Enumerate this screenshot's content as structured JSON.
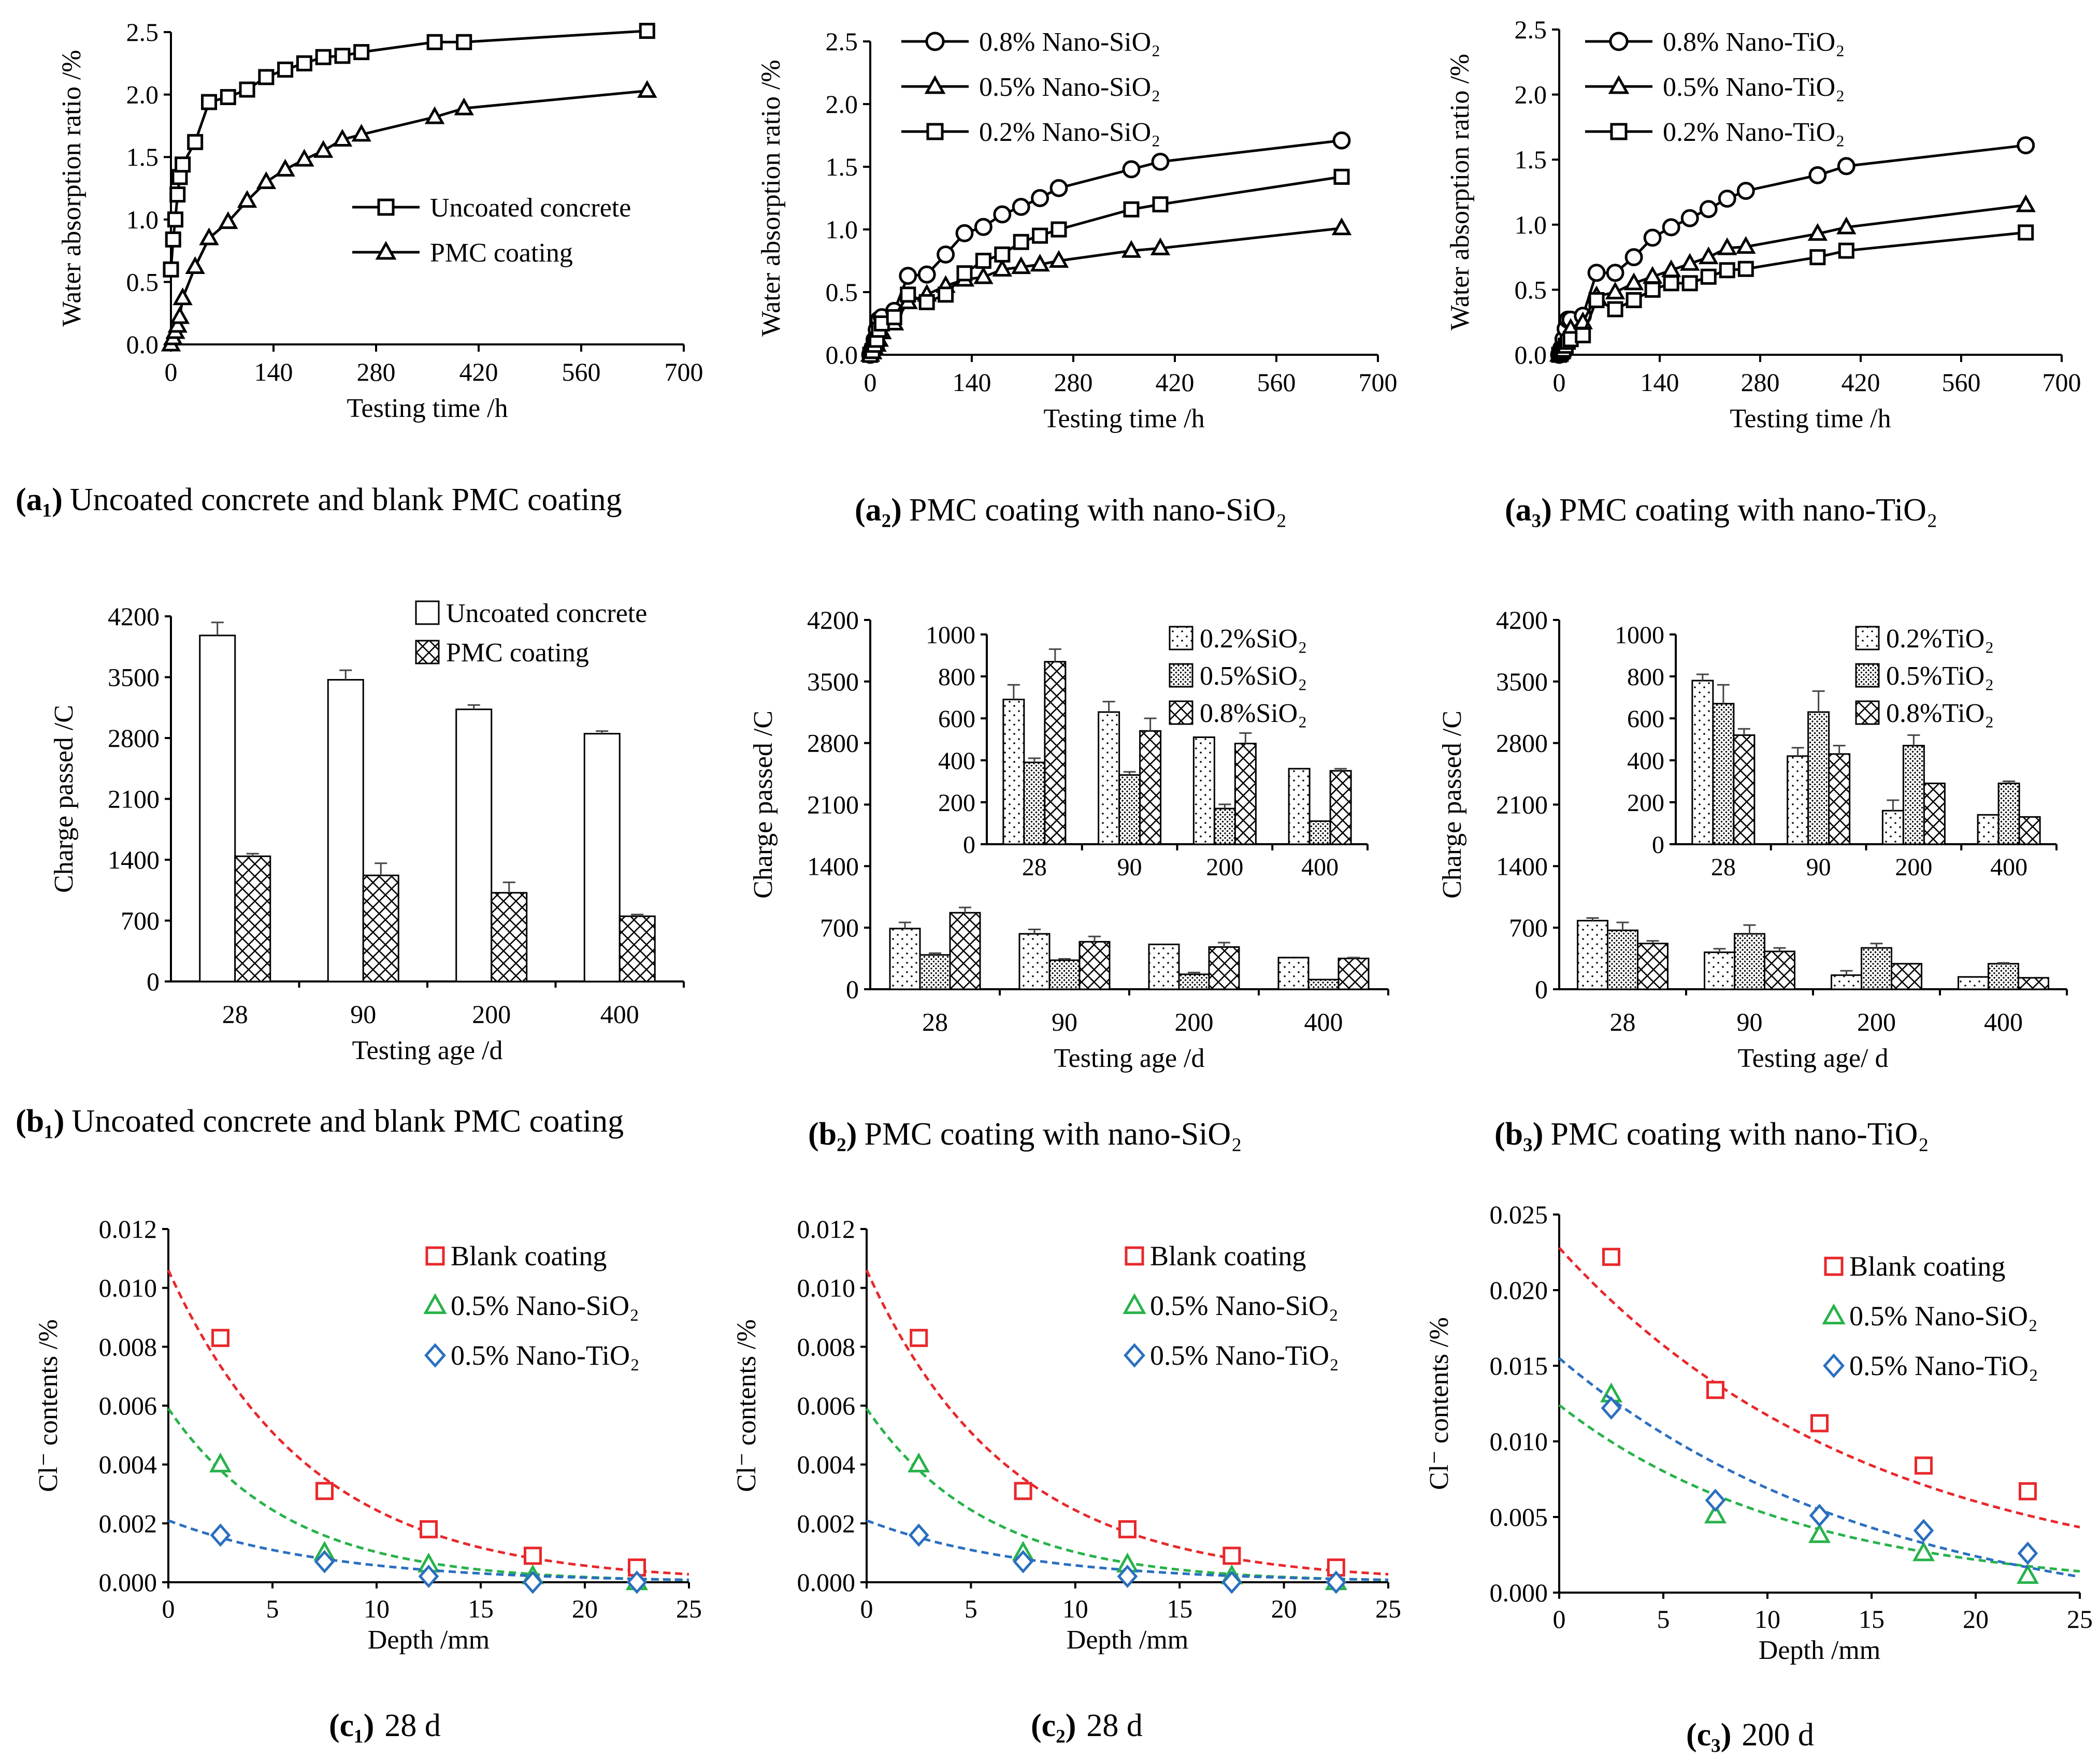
{
  "colors": {
    "axis": "#000000",
    "red": "#e8282b",
    "green": "#27b24a",
    "blue": "#2a6fc0",
    "white": "#ffffff"
  },
  "chart_data": [
    {
      "id": "a1",
      "type": "line",
      "caption_id": "(a₁)",
      "caption": "Uncoated concrete and blank PMC coating",
      "xlabel": "Testing time /h",
      "ylabel": "Water absorption ratio /%",
      "xlim": [
        0,
        700
      ],
      "ylim": [
        0,
        2.5
      ],
      "xticks": [
        "0",
        "140",
        "280",
        "420",
        "560",
        "700"
      ],
      "yticks": [
        "0.0",
        "0.5",
        "1.0",
        "1.5",
        "2.0",
        "2.5"
      ],
      "legend": [
        "Uncoated concrete",
        "PMC coating"
      ],
      "series": [
        {
          "name": "Uncoated concrete",
          "marker": "square",
          "x": [
            0,
            3,
            6,
            9,
            12,
            16,
            33,
            52,
            78,
            104,
            130,
            156,
            182,
            208,
            234,
            260,
            360,
            400,
            650
          ],
          "y": [
            0.6,
            0.84,
            1.0,
            1.2,
            1.34,
            1.44,
            1.62,
            1.94,
            1.98,
            2.04,
            2.14,
            2.2,
            2.25,
            2.3,
            2.31,
            2.34,
            2.42,
            2.42,
            2.51
          ]
        },
        {
          "name": "PMC coating",
          "marker": "triangle",
          "x": [
            0,
            3,
            6,
            9,
            12,
            16,
            33,
            52,
            78,
            104,
            130,
            156,
            182,
            208,
            234,
            260,
            360,
            400,
            650
          ],
          "y": [
            0.0,
            0.05,
            0.1,
            0.15,
            0.22,
            0.37,
            0.62,
            0.85,
            0.98,
            1.15,
            1.3,
            1.4,
            1.48,
            1.55,
            1.64,
            1.68,
            1.82,
            1.89,
            2.03
          ]
        }
      ]
    },
    {
      "id": "a2",
      "type": "line",
      "caption_id": "(a₂)",
      "caption": "PMC coating with nano-SiO₂",
      "xlabel": "Testing time /h",
      "ylabel": "Water absorption ratio /%",
      "xlim": [
        0,
        700
      ],
      "ylim": [
        0,
        2.5
      ],
      "xticks": [
        "0",
        "140",
        "280",
        "420",
        "560",
        "700"
      ],
      "yticks": [
        "0.0",
        "0.5",
        "1.0",
        "1.5",
        "2.0",
        "2.5"
      ],
      "legend": [
        "0.8% Nano-SiO₂",
        "0.5% Nano-SiO₂",
        "0.2% Nano-SiO₂"
      ],
      "series": [
        {
          "name": "0.8% Nano-SiO₂",
          "marker": "circle",
          "x": [
            0,
            3,
            6,
            9,
            12,
            16,
            33,
            52,
            78,
            104,
            130,
            156,
            182,
            208,
            234,
            260,
            360,
            400,
            650
          ],
          "y": [
            0.0,
            0.05,
            0.12,
            0.2,
            0.28,
            0.3,
            0.35,
            0.63,
            0.64,
            0.8,
            0.97,
            1.02,
            1.12,
            1.18,
            1.25,
            1.33,
            1.48,
            1.54,
            1.71
          ]
        },
        {
          "name": "0.5% Nano-SiO₂",
          "marker": "triangle",
          "x": [
            0,
            3,
            6,
            9,
            12,
            16,
            33,
            52,
            78,
            104,
            130,
            156,
            182,
            208,
            234,
            260,
            360,
            400,
            650
          ],
          "y": [
            0.0,
            0.02,
            0.05,
            0.08,
            0.12,
            0.18,
            0.25,
            0.42,
            0.48,
            0.55,
            0.6,
            0.62,
            0.68,
            0.7,
            0.72,
            0.75,
            0.83,
            0.85,
            1.01
          ]
        },
        {
          "name": "0.2% Nano-SiO₂",
          "marker": "square",
          "x": [
            0,
            3,
            6,
            9,
            12,
            16,
            33,
            52,
            78,
            104,
            130,
            156,
            182,
            208,
            234,
            260,
            360,
            400,
            650
          ],
          "y": [
            0.0,
            0.03,
            0.08,
            0.12,
            0.2,
            0.25,
            0.3,
            0.48,
            0.42,
            0.48,
            0.65,
            0.75,
            0.8,
            0.9,
            0.95,
            1.0,
            1.16,
            1.2,
            1.42
          ]
        }
      ]
    },
    {
      "id": "a3",
      "type": "line",
      "caption_id": "(a₃)",
      "caption": "PMC coating with nano-TiO₂",
      "xlabel": "Testing time /h",
      "ylabel": "Water absorption ratio /%",
      "xlim": [
        0,
        700
      ],
      "ylim": [
        0,
        2.5
      ],
      "xticks": [
        "0",
        "140",
        "280",
        "420",
        "560",
        "700"
      ],
      "yticks": [
        "0.0",
        "0.5",
        "1.0",
        "1.5",
        "2.0",
        "2.5"
      ],
      "legend": [
        "0.8% Nano-TiO₂",
        "0.5% Nano-TiO₂",
        "0.2% Nano-TiO₂"
      ],
      "series": [
        {
          "name": "0.8% Nano-TiO₂",
          "marker": "circle",
          "x": [
            0,
            3,
            6,
            9,
            12,
            16,
            33,
            52,
            78,
            104,
            130,
            156,
            182,
            208,
            234,
            260,
            360,
            400,
            650
          ],
          "y": [
            0.0,
            0.05,
            0.12,
            0.2,
            0.27,
            0.27,
            0.3,
            0.63,
            0.63,
            0.75,
            0.9,
            0.98,
            1.05,
            1.12,
            1.2,
            1.26,
            1.38,
            1.45,
            1.61
          ]
        },
        {
          "name": "0.5% Nano-TiO₂",
          "marker": "triangle",
          "x": [
            0,
            3,
            6,
            9,
            12,
            16,
            33,
            52,
            78,
            104,
            130,
            156,
            182,
            208,
            234,
            260,
            360,
            400,
            650
          ],
          "y": [
            0.0,
            0.02,
            0.05,
            0.1,
            0.15,
            0.2,
            0.25,
            0.45,
            0.48,
            0.55,
            0.6,
            0.65,
            0.7,
            0.75,
            0.82,
            0.83,
            0.93,
            0.98,
            1.15
          ]
        },
        {
          "name": "0.2% Nano-TiO₂",
          "marker": "square",
          "x": [
            0,
            3,
            6,
            9,
            12,
            16,
            33,
            52,
            78,
            104,
            130,
            156,
            182,
            208,
            234,
            260,
            360,
            400,
            650
          ],
          "y": [
            0.0,
            0.02,
            0.04,
            0.07,
            0.1,
            0.12,
            0.15,
            0.42,
            0.35,
            0.42,
            0.5,
            0.55,
            0.55,
            0.6,
            0.65,
            0.66,
            0.75,
            0.8,
            0.94
          ]
        }
      ]
    },
    {
      "id": "b1",
      "type": "bar",
      "caption_id": "(b₁)",
      "caption": "Uncoated concrete and blank PMC coating",
      "xlabel": "Testing age /d",
      "ylabel": "Charge passed /C",
      "ylim": [
        0,
        4200
      ],
      "yticks": [
        "0",
        "700",
        "1400",
        "2100",
        "2800",
        "3500",
        "4200"
      ],
      "categories": [
        "28",
        "90",
        "200",
        "400"
      ],
      "series": [
        {
          "name": "Uncoated concrete",
          "pattern": "white",
          "values": [
            3980,
            3470,
            3130,
            2850
          ],
          "errors": [
            150,
            110,
            50,
            30
          ]
        },
        {
          "name": "PMC coating",
          "pattern": "cross",
          "values": [
            1440,
            1220,
            1020,
            750
          ],
          "errors": [
            30,
            140,
            120,
            20
          ]
        }
      ]
    },
    {
      "id": "b2",
      "type": "bar",
      "caption_id": "(b₂)",
      "caption": "PMC coating with nano-SiO₂",
      "xlabel": "Testing age /d",
      "ylabel": "Charge passed /C",
      "ylim": [
        0,
        4200
      ],
      "yticks": [
        "0",
        "700",
        "1400",
        "2100",
        "2800",
        "3500",
        "4200"
      ],
      "categories": [
        "28",
        "90",
        "200",
        "400"
      ],
      "series": [
        {
          "name": "0.2%SiO₂",
          "pattern": "dots",
          "values": [
            690,
            630,
            510,
            360
          ],
          "errors": [
            70,
            50,
            0,
            0
          ]
        },
        {
          "name": "0.5%SiO₂",
          "pattern": "dense",
          "values": [
            390,
            330,
            170,
            110
          ],
          "errors": [
            20,
            15,
            20,
            0
          ]
        },
        {
          "name": "0.8%SiO₂",
          "pattern": "cross",
          "values": [
            870,
            540,
            480,
            350
          ],
          "errors": [
            60,
            60,
            50,
            10
          ]
        }
      ],
      "inset": {
        "ylim": [
          0,
          1000
        ],
        "yticks": [
          "0",
          "200",
          "400",
          "600",
          "800",
          "1000"
        ]
      }
    },
    {
      "id": "b3",
      "type": "bar",
      "caption_id": "(b₃)",
      "caption": "PMC coating with nano-TiO₂",
      "xlabel": "Testing age/ d",
      "ylabel": "Charge passed /C",
      "ylim": [
        0,
        4200
      ],
      "yticks": [
        "0",
        "700",
        "1400",
        "2100",
        "2800",
        "3500",
        "4200"
      ],
      "categories": [
        "28",
        "90",
        "200",
        "400"
      ],
      "series": [
        {
          "name": "0.2%TiO₂",
          "pattern": "dots",
          "values": [
            780,
            420,
            160,
            140
          ],
          "errors": [
            30,
            40,
            50,
            0
          ]
        },
        {
          "name": "0.5%TiO₂",
          "pattern": "dense",
          "values": [
            670,
            630,
            470,
            290
          ],
          "errors": [
            90,
            100,
            50,
            10
          ]
        },
        {
          "name": "0.8%TiO₂",
          "pattern": "cross",
          "values": [
            520,
            430,
            290,
            130
          ],
          "errors": [
            30,
            40,
            0,
            0
          ]
        }
      ],
      "inset": {
        "ylim": [
          0,
          1000
        ],
        "yticks": [
          "0",
          "200",
          "400",
          "600",
          "800",
          "1000"
        ]
      }
    },
    {
      "id": "c1",
      "type": "scatter",
      "caption_id": "(c₁)",
      "caption": "28 d",
      "xlabel": "Depth /mm",
      "ylabel": "Cl⁻ contents /%",
      "xlim": [
        0,
        25
      ],
      "ylim": [
        0,
        0.012
      ],
      "xticks": [
        "0",
        "5",
        "10",
        "15",
        "20",
        "25"
      ],
      "yticks": [
        "0.000",
        "0.002",
        "0.004",
        "0.006",
        "0.008",
        "0.010",
        "0.012"
      ],
      "series": [
        {
          "name": "Blank coating",
          "marker": "square",
          "color": "red",
          "x": [
            2.5,
            7.5,
            12.5,
            17.5,
            22.5
          ],
          "y": [
            0.0083,
            0.0031,
            0.0018,
            0.0009,
            0.0005
          ],
          "fit_a": 0.0106,
          "fit_b": -0.1466,
          "fit_floor": 0.0
        },
        {
          "name": "0.5% Nano-SiO₂",
          "marker": "triangle",
          "color": "green",
          "x": [
            2.5,
            7.5,
            12.5,
            17.5,
            22.5
          ],
          "y": [
            0.004,
            0.001,
            0.0006,
            0.0002,
            0.0
          ],
          "fit_a": 0.0059,
          "fit_b": -0.1752,
          "fit_floor": 0.0
        },
        {
          "name": "0.5% Nano-TiO₂",
          "marker": "diamond",
          "color": "blue",
          "x": [
            2.5,
            7.5,
            12.5,
            17.5,
            22.5
          ],
          "y": [
            0.0016,
            0.0007,
            0.0002,
            0.0,
            0.0
          ],
          "fit_a": 0.0021,
          "fit_b": -0.1299,
          "fit_floor": 0.0
        }
      ]
    },
    {
      "id": "c2",
      "type": "scatter",
      "caption_id": "(c₂)",
      "caption": "28 d",
      "xlabel": "Depth /mm",
      "ylabel": "Cl⁻ contents /%",
      "xlim": [
        0,
        25
      ],
      "ylim": [
        0,
        0.012
      ],
      "xticks": [
        "0",
        "5",
        "10",
        "15",
        "20",
        "25"
      ],
      "yticks": [
        "0.000",
        "0.002",
        "0.004",
        "0.006",
        "0.008",
        "0.010",
        "0.012"
      ],
      "series": [
        {
          "name": "Blank coating",
          "marker": "square",
          "color": "red",
          "x": [
            2.5,
            7.5,
            12.5,
            17.5,
            22.5
          ],
          "y": [
            0.0083,
            0.0031,
            0.0018,
            0.0009,
            0.0005
          ],
          "fit_a": 0.0106,
          "fit_b": -0.1466,
          "fit_floor": 0.0
        },
        {
          "name": "0.5% Nano-SiO₂",
          "marker": "triangle",
          "color": "green",
          "x": [
            2.5,
            7.5,
            12.5,
            17.5,
            22.5
          ],
          "y": [
            0.004,
            0.001,
            0.0006,
            0.0002,
            0.0
          ],
          "fit_a": 0.0059,
          "fit_b": -0.1752,
          "fit_floor": 0.0
        },
        {
          "name": "0.5% Nano-TiO₂",
          "marker": "diamond",
          "color": "blue",
          "x": [
            2.5,
            7.5,
            12.5,
            17.5,
            22.5
          ],
          "y": [
            0.0016,
            0.0007,
            0.0002,
            0.0,
            0.0
          ],
          "fit_a": 0.0021,
          "fit_b": -0.1299,
          "fit_floor": 0.0
        }
      ]
    },
    {
      "id": "c3",
      "type": "scatter",
      "caption_id": "(c₃)",
      "caption": "200 d",
      "xlabel": "Depth /mm",
      "ylabel": "Cl⁻ contents /%",
      "xlim": [
        0,
        25
      ],
      "ylim": [
        0,
        0.025
      ],
      "xticks": [
        "0",
        "5",
        "10",
        "15",
        "20",
        "25"
      ],
      "yticks": [
        "0.000",
        "0.005",
        "0.010",
        "0.015",
        "0.020",
        "0.025"
      ],
      "series": [
        {
          "name": "Blank coating",
          "marker": "square",
          "color": "red",
          "x": [
            2.5,
            7.5,
            12.5,
            17.5,
            22.5
          ],
          "y": [
            0.0222,
            0.0134,
            0.0112,
            0.0084,
            0.0067
          ],
          "fit_a": 0.0228,
          "fit_b": -0.0665,
          "fit_floor": 0.0
        },
        {
          "name": "0.5% Nano-SiO₂",
          "marker": "triangle",
          "color": "green",
          "x": [
            2.5,
            7.5,
            12.5,
            17.5,
            22.5
          ],
          "y": [
            0.0131,
            0.0051,
            0.0038,
            0.0026,
            0.0011
          ],
          "fit_a": 0.0124,
          "fit_b": -0.087,
          "fit_floor": 0.0
        },
        {
          "name": "0.5% Nano-TiO₂",
          "marker": "diamond",
          "color": "blue",
          "x": [
            2.5,
            7.5,
            12.5,
            17.5,
            22.5
          ],
          "y": [
            0.0122,
            0.0061,
            0.0051,
            0.0041,
            0.0026
          ],
          "fit_a": 0.0155,
          "fit_b": -0.065,
          "fit_floor": -0.0025
        }
      ]
    }
  ]
}
